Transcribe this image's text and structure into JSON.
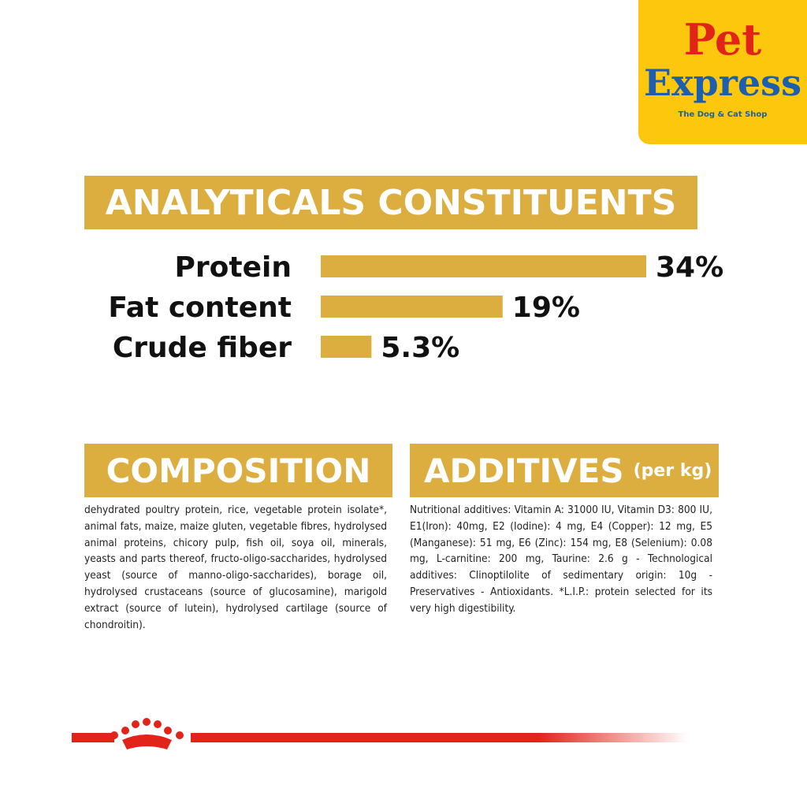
{
  "logo": {
    "brand_top": "Pet",
    "brand_bottom": "Express",
    "tagline": "The Dog & Cat Shop"
  },
  "chart_data": {
    "type": "bar",
    "title": "ANALYTICALS CONSTITUENTS",
    "categories": [
      "Protein",
      "Fat content",
      "Crude fiber"
    ],
    "values": [
      34,
      19,
      5.3
    ],
    "value_labels": [
      "34%",
      "19%",
      "5.3%"
    ],
    "color": "#dcae3f"
  },
  "composition": {
    "title": "COMPOSITION",
    "text": "dehydrated poultry protein, rice, vegetable protein isolate*, animal fats, maize, maize gluten, vegetable fibres, hydrolysed animal proteins, chicory pulp, fish oil, soya oil, minerals, yeasts and parts thereof, fructo-oligo-saccharides, hydrolysed yeast (source of manno-oligo-saccharides), borage oil, hydrolysed crustaceans (source of glucosamine), marigold extract (source of lutein), hydrolysed cartilage (source of chondroitin)."
  },
  "additives": {
    "title": "ADDITIVES",
    "subtitle": "(per kg)",
    "text": "Nutritional additives: Vitamin A: 31000 IU, Vitamin D3: 800 IU, E1(Iron): 40mg, E2 (Iodine): 4 mg, E4 (Copper): 12 mg, E5 (Manganese): 51 mg, E6 (Zinc): 154 mg, E8 (Selenium): 0.08 mg, L-carnitine: 200 mg, Taurine: 2.6 g - Technological additives: Clinoptilolite of sedimentary origin: 10g - Preservatives - Antioxidants. *L.I.P.: protein selected for its very high digestibility."
  }
}
